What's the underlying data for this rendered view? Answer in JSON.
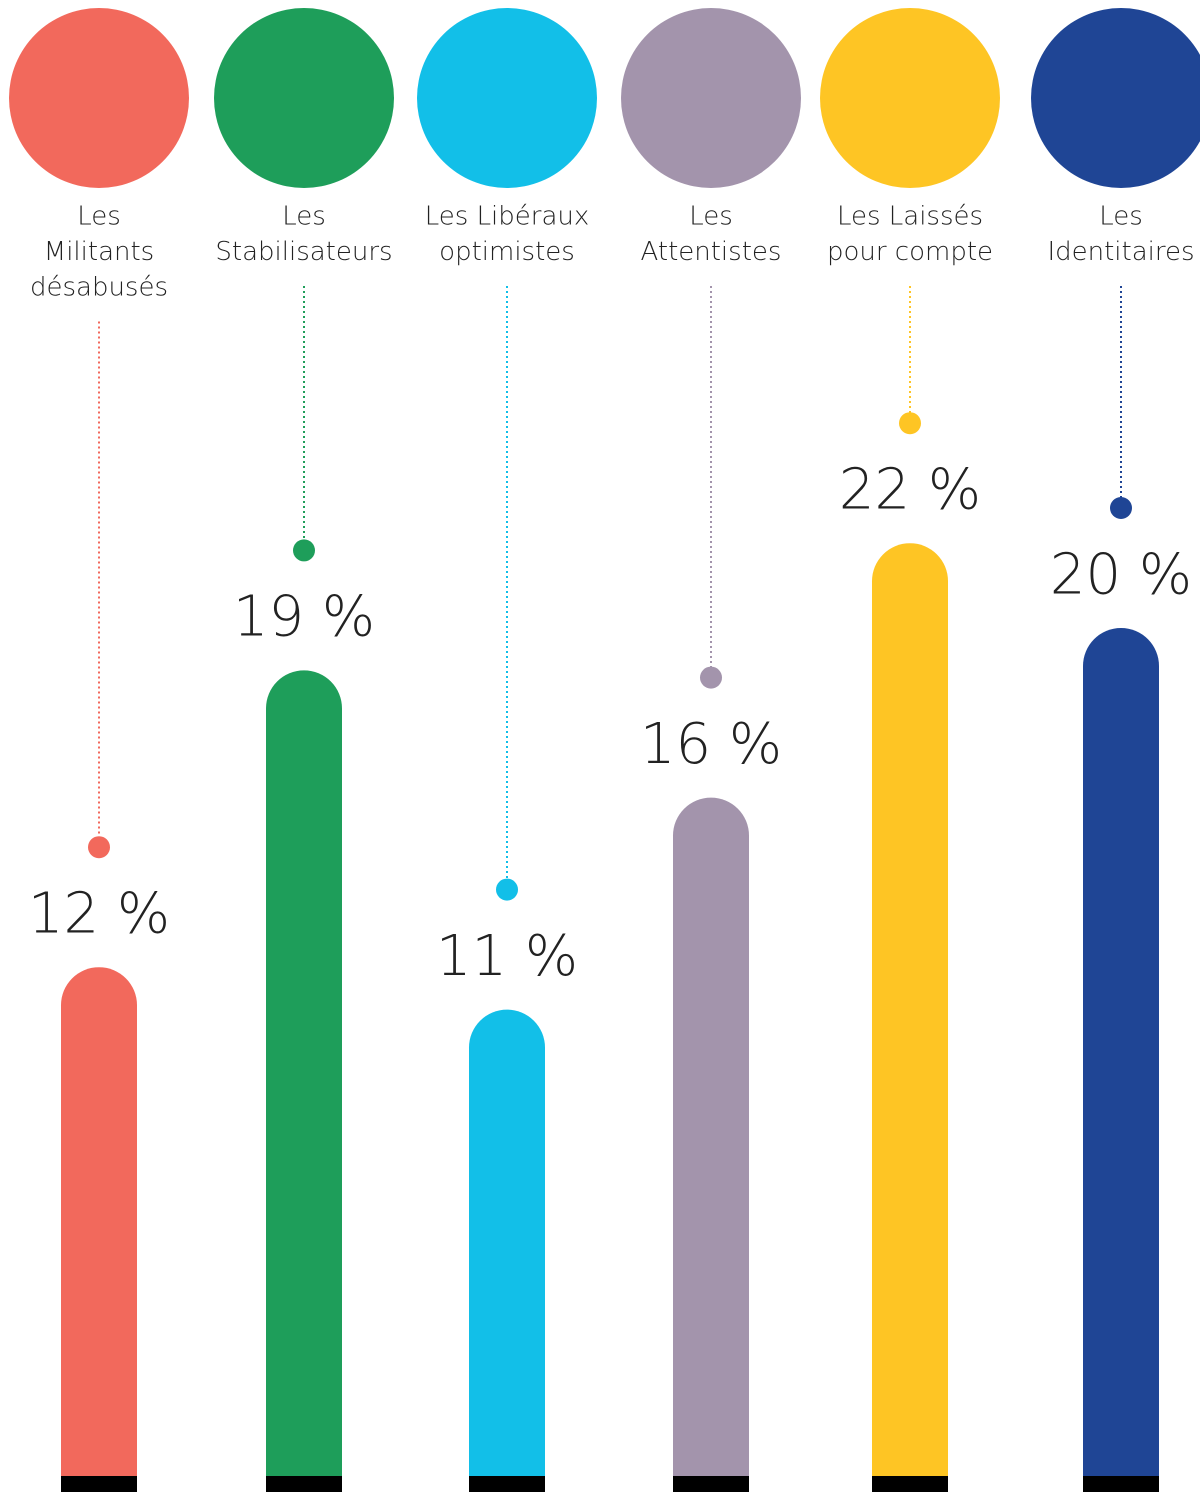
{
  "chart_data": {
    "type": "bar",
    "categories": [
      [
        "Les",
        "Militants",
        "désabusés"
      ],
      [
        "Les",
        "Stabilisateurs"
      ],
      [
        "Les Libéraux",
        "optimistes"
      ],
      [
        "Les",
        "Attentistes"
      ],
      [
        "Les Laissés",
        "pour compte"
      ],
      [
        "Les",
        "Identitaires"
      ]
    ],
    "values": [
      12,
      19,
      11,
      16,
      22,
      20
    ],
    "value_labels": [
      "12 %",
      "19 %",
      "11 %",
      "16 %",
      "22 %",
      "20 %"
    ],
    "colors": [
      "#f2695c",
      "#1e9e5a",
      "#12bfe8",
      "#a394ac",
      "#fec524",
      "#1f4595"
    ],
    "ylim": [
      0,
      35
    ]
  }
}
